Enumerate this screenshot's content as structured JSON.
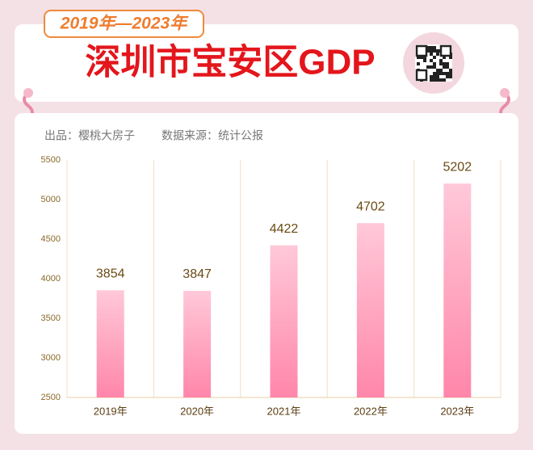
{
  "period": "2019年—2023年",
  "chart_data": {
    "type": "bar",
    "title": "深圳市宝安区GDP",
    "notes": [
      "出品：樱桃大房子",
      "数据来源：统计公报"
    ],
    "categories": [
      "2019年",
      "2020年",
      "2021年",
      "2022年",
      "2023年"
    ],
    "values": [
      3854,
      3847,
      4422,
      4702,
      5202
    ],
    "color": "#ff86aa",
    "ylim": [
      2500,
      5500
    ],
    "yticks": [
      2500,
      3000,
      3500,
      4000,
      4500,
      5000,
      5500
    ]
  }
}
